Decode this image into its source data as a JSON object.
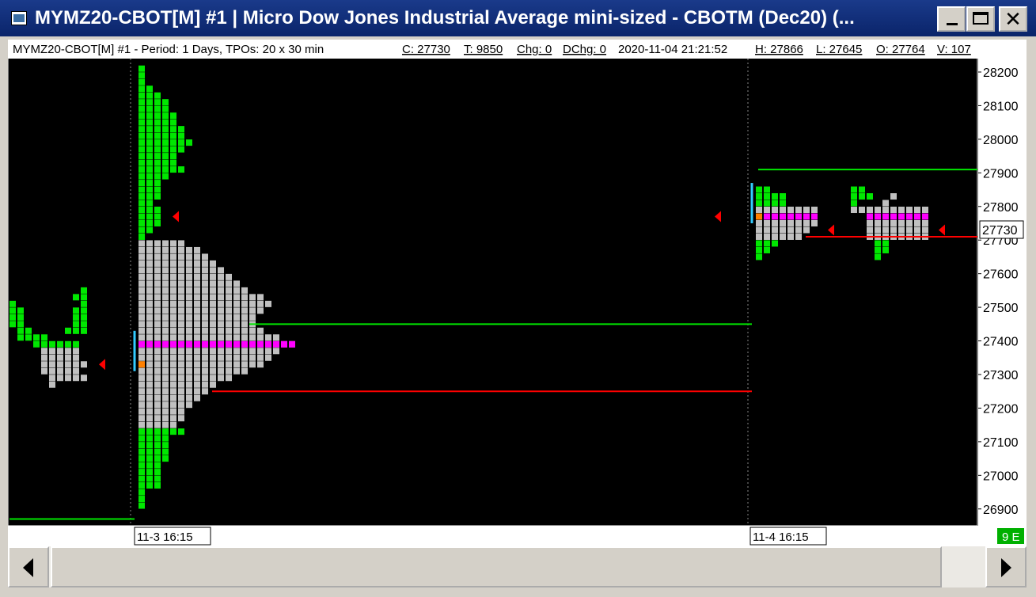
{
  "window": {
    "title": "MYMZ20-CBOT[M]  #1 | Micro Dow Jones Industrial Average mini-sized - CBOTM (Dec20) (...",
    "icon": "chart-window-icon",
    "controls": [
      "minimize",
      "maximize",
      "close"
    ]
  },
  "header": {
    "info": "MYMZ20-CBOT[M]  #1 - Period: 1 Days, TPOs: 20 x 30 min",
    "close": "C: 27730",
    "ticks": "T: 9850",
    "chg": "Chg: 0",
    "dchg": "DChg: 0",
    "datetime": "2020-11-04  21:21:52",
    "high": "H: 27866",
    "low": "L: 27645",
    "open": "O: 27764",
    "volume": "V: 107"
  },
  "price_label": "27730",
  "status_badge": "9 E",
  "colors": {
    "background": "#000000",
    "tpo_single": "#00e600",
    "tpo_value_area": "#c0c0c0",
    "poc": "#ff00ff",
    "open_tpo": "#ff8000",
    "close_marker": "#ff0000",
    "high_line": "#00e600",
    "low_line": "#ff0000",
    "initial_balance": "#33ccff"
  },
  "chart_data": {
    "type": "tpo_market_profile",
    "period": "1 Days",
    "tpo_size": "20 x 30 min",
    "y_axis": {
      "ticks": [
        28200,
        28100,
        28000,
        27900,
        27800,
        27700,
        27600,
        27500,
        27400,
        27300,
        27200,
        27100,
        27000,
        26900
      ],
      "range": [
        26850,
        28240
      ],
      "current_price": 27730
    },
    "x_axis": {
      "labels": [
        "11-3  16:15",
        "11-4  16:15"
      ]
    },
    "profiles": [
      {
        "label": "",
        "single_print_tpos": [
          [
            27510,
            0,
            1
          ],
          [
            27490,
            0,
            2
          ],
          [
            27470,
            0,
            2
          ],
          [
            27450,
            0,
            2
          ],
          [
            27430,
            1,
            3
          ],
          [
            27410,
            1,
            5
          ],
          [
            27390,
            3,
            9
          ],
          [
            27510,
            9,
            10
          ],
          [
            27530,
            8,
            10
          ],
          [
            27550,
            9,
            10
          ],
          [
            27490,
            8,
            10
          ],
          [
            27470,
            8,
            10
          ],
          [
            27450,
            8,
            10
          ],
          [
            27430,
            7,
            10
          ]
        ],
        "value_area_tpos": [
          [
            27370,
            4,
            9
          ],
          [
            27350,
            4,
            9
          ],
          [
            27330,
            4,
            10
          ],
          [
            27310,
            4,
            9
          ],
          [
            27290,
            5,
            9
          ],
          [
            27270,
            5,
            6
          ],
          [
            27290,
            9,
            10
          ]
        ],
        "close_marker": 27330,
        "naked_low_line": 26870
      },
      {
        "label": "11-3  16:15",
        "single_print_tpos": [
          [
            28210,
            0,
            1
          ],
          [
            28190,
            0,
            1
          ],
          [
            28170,
            0,
            1
          ],
          [
            28150,
            0,
            2
          ],
          [
            28130,
            0,
            3
          ],
          [
            28110,
            0,
            4
          ],
          [
            28090,
            0,
            4
          ],
          [
            28070,
            0,
            5
          ],
          [
            28050,
            0,
            5
          ],
          [
            28030,
            0,
            6
          ],
          [
            28010,
            0,
            6
          ],
          [
            27990,
            0,
            7
          ],
          [
            27970,
            0,
            6
          ],
          [
            27950,
            0,
            5
          ],
          [
            27930,
            0,
            5
          ],
          [
            27910,
            0,
            6
          ],
          [
            27890,
            0,
            4
          ],
          [
            27870,
            0,
            3
          ],
          [
            27850,
            0,
            3
          ],
          [
            27830,
            0,
            3
          ],
          [
            27810,
            0,
            2
          ],
          [
            27790,
            0,
            3
          ],
          [
            27770,
            0,
            3
          ],
          [
            27750,
            0,
            3
          ],
          [
            27730,
            0,
            2
          ],
          [
            27710,
            0,
            1
          ],
          [
            27130,
            0,
            6
          ],
          [
            27110,
            0,
            4
          ],
          [
            27090,
            0,
            4
          ],
          [
            27070,
            0,
            4
          ],
          [
            27050,
            0,
            4
          ],
          [
            27030,
            0,
            3
          ],
          [
            27010,
            0,
            3
          ],
          [
            26990,
            0,
            3
          ],
          [
            26970,
            0,
            3
          ],
          [
            26950,
            0,
            1
          ],
          [
            26930,
            0,
            1
          ],
          [
            26910,
            0,
            1
          ]
        ],
        "value_area_tpos": [
          [
            27690,
            0,
            6
          ],
          [
            27670,
            0,
            8
          ],
          [
            27650,
            0,
            9
          ],
          [
            27630,
            0,
            10
          ],
          [
            27610,
            0,
            11
          ],
          [
            27590,
            0,
            12
          ],
          [
            27570,
            0,
            13
          ],
          [
            27550,
            0,
            14
          ],
          [
            27530,
            0,
            16
          ],
          [
            27510,
            0,
            17
          ],
          [
            27490,
            0,
            16
          ],
          [
            27470,
            0,
            15
          ],
          [
            27450,
            0,
            15
          ],
          [
            27430,
            0,
            16
          ],
          [
            27410,
            0,
            18
          ],
          [
            27390,
            0,
            20
          ],
          [
            27370,
            0,
            18
          ],
          [
            27350,
            0,
            17
          ],
          [
            27330,
            0,
            16
          ],
          [
            27310,
            0,
            14
          ],
          [
            27290,
            0,
            12
          ],
          [
            27270,
            0,
            10
          ],
          [
            27250,
            0,
            9
          ],
          [
            27230,
            0,
            8
          ],
          [
            27210,
            0,
            7
          ],
          [
            27190,
            0,
            6
          ],
          [
            27170,
            0,
            6
          ],
          [
            27150,
            0,
            5
          ]
        ],
        "poc_price": 27390,
        "poc_rows": [
          [
            27390,
            0,
            20
          ]
        ],
        "open_tpo": 27330,
        "close_marker": 27770,
        "high_line": 27450,
        "low_line": 27250,
        "ib_range": [
          27310,
          27430
        ]
      },
      {
        "label": "11-4  16:15",
        "single_print_tpos": [
          [
            27850,
            0,
            2
          ],
          [
            27830,
            0,
            4
          ],
          [
            27810,
            0,
            4
          ],
          [
            27690,
            0,
            3
          ],
          [
            27670,
            0,
            2
          ],
          [
            27650,
            0,
            1
          ],
          [
            27850,
            12,
            14
          ],
          [
            27830,
            12,
            15
          ],
          [
            27810,
            12,
            13
          ],
          [
            27690,
            15,
            17
          ],
          [
            27670,
            15,
            17
          ],
          [
            27650,
            15,
            16
          ]
        ],
        "value_area_tpos": [
          [
            27790,
            0,
            8
          ],
          [
            27770,
            0,
            8
          ],
          [
            27750,
            0,
            8
          ],
          [
            27730,
            0,
            7
          ],
          [
            27710,
            0,
            6
          ],
          [
            27810,
            16,
            17
          ],
          [
            27830,
            17,
            18
          ],
          [
            27790,
            12,
            22
          ],
          [
            27750,
            14,
            22
          ],
          [
            27730,
            14,
            22
          ],
          [
            27710,
            14,
            22
          ]
        ],
        "poc_price": 27770,
        "poc_rows": [
          [
            27770,
            1,
            8
          ],
          [
            27770,
            14,
            22
          ]
        ],
        "open_tpo": 27770,
        "close_marker": 27730,
        "high_line": 27910,
        "low_line": 27710,
        "ib_range": [
          27750,
          27870
        ]
      }
    ],
    "extended_lines": [
      {
        "kind": "high",
        "price": 27450,
        "from_profile": 1
      },
      {
        "kind": "low",
        "price": 27250,
        "from_profile": 1
      }
    ]
  }
}
